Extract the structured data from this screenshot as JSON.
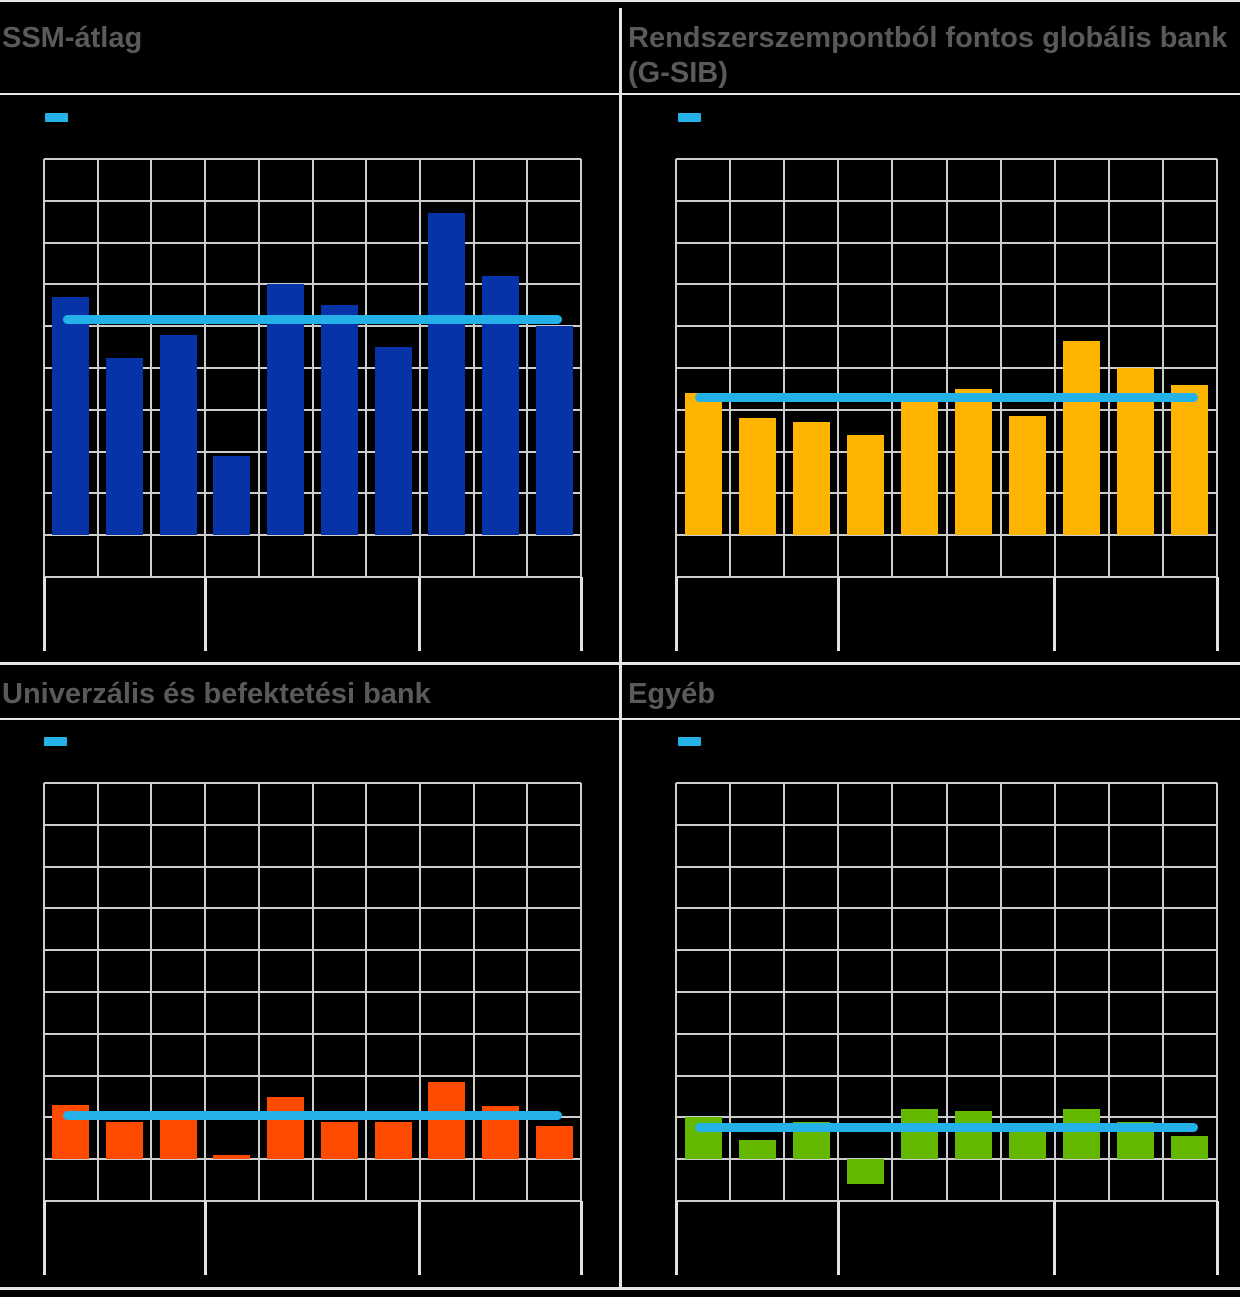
{
  "figure": {
    "background": "#000000",
    "note": "2x2 grid of quarterly bar charts; axis tick labels and legend caption are not visible (rendered black on black), only bars, gridlines and the horizontal average line are visible"
  },
  "colors": {
    "average_line": "#24B1E7",
    "title_text": "#5A5A5A",
    "gridline": "#CDCDCD",
    "frame_lines": "#E6E6E6"
  },
  "panels": [
    {
      "key": "ssm_atlag",
      "title": "SSM-átlag"
    },
    {
      "key": "gsib",
      "title": "Rendszerszempontból fontos globális bank (G-SIB)"
    },
    {
      "key": "univerzalis",
      "title": "Univerzális és befektetési bank"
    },
    {
      "key": "egyeb",
      "title": "Egyéb"
    }
  ],
  "chart_data": [
    {
      "type": "bar",
      "title": "SSM-átlag",
      "bar_color": "#0633A8",
      "n_bars": 10,
      "values": [
        5.7,
        4.25,
        4.8,
        1.9,
        6.0,
        5.5,
        4.5,
        7.7,
        6.2,
        5.0
      ],
      "average_line_value": 5.15,
      "unit": "gridline units (y-axis labels not visible in image)",
      "ylim": [
        -1,
        9
      ],
      "y_grid_step": 1,
      "x_group_sizes": [
        3,
        4,
        3
      ],
      "grid": "on",
      "legend": [
        {
          "style": "line",
          "swatch_color": "#24B1E7",
          "label": ""
        }
      ]
    },
    {
      "type": "bar",
      "title": "Rendszerszempontból fontos globális bank (G-SIB)",
      "bar_color": "#FFB400",
      "n_bars": 10,
      "values": [
        3.4,
        2.8,
        2.7,
        2.4,
        3.25,
        3.5,
        2.85,
        4.65,
        4.0,
        3.6
      ],
      "average_line_value": 3.3,
      "unit": "gridline units (y-axis labels not visible in image)",
      "ylim": [
        -1,
        9
      ],
      "y_grid_step": 1,
      "x_group_sizes": [
        3,
        4,
        3
      ],
      "grid": "on",
      "legend": [
        {
          "style": "line",
          "swatch_color": "#24B1E7",
          "label": ""
        }
      ]
    },
    {
      "type": "bar",
      "title": "Univerzális és befektetési bank",
      "bar_color": "#FF4B00",
      "n_bars": 10,
      "values": [
        1.3,
        0.9,
        1.02,
        0.1,
        1.5,
        0.9,
        0.9,
        1.85,
        1.28,
        0.8
      ],
      "average_line_value": 1.05,
      "unit": "gridline units (y-axis labels not visible in image)",
      "ylim": [
        -1,
        9
      ],
      "y_grid_step": 1,
      "x_group_sizes": [
        3,
        4,
        3
      ],
      "grid": "on",
      "legend": [
        {
          "style": "line",
          "swatch_color": "#24B1E7",
          "label": ""
        }
      ]
    },
    {
      "type": "bar",
      "title": "Egyéb",
      "bar_color": "#65B800",
      "n_bars": 10,
      "values": [
        1.0,
        0.45,
        0.9,
        -0.6,
        1.2,
        1.15,
        0.85,
        1.2,
        0.9,
        0.55
      ],
      "average_line_value": 0.75,
      "unit": "gridline units (y-axis labels not visible in image)",
      "ylim": [
        -1,
        9
      ],
      "y_grid_step": 1,
      "x_group_sizes": [
        3,
        4,
        3
      ],
      "grid": "on",
      "legend": [
        {
          "style": "line",
          "swatch_color": "#24B1E7",
          "label": ""
        }
      ]
    }
  ]
}
